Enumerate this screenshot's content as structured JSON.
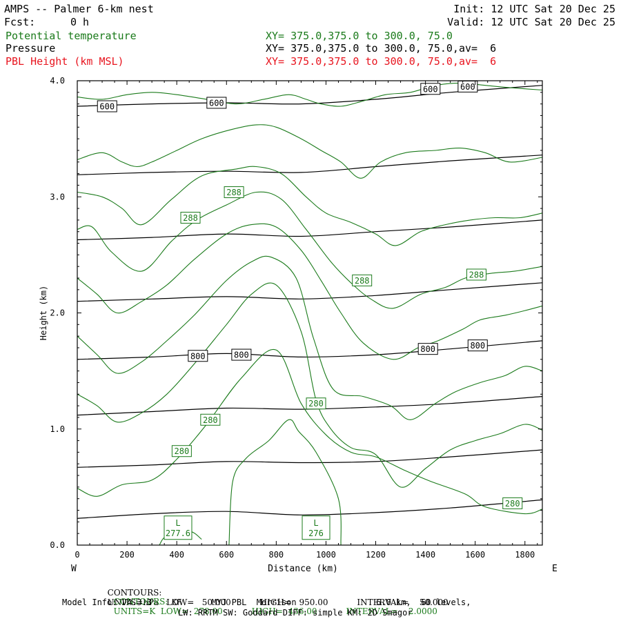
{
  "header": {
    "title": "AMPS -- Palmer 6-km nest",
    "fcst_label": "Fcst:",
    "fcst_value": "0 h",
    "init": "Init: 12 UTC Sat 20 Dec 25",
    "valid": "Valid: 12 UTC Sat 20 Dec 25",
    "fields": [
      {
        "name": "Potential temperature",
        "xy": "XY= 375.0,375.0 to 300.0, 75.0",
        "color": "#1a7a1a"
      },
      {
        "name": "Pressure",
        "xy": "XY= 375.0,375.0 to 300.0, 75.0,av=  6",
        "color": "#000000"
      },
      {
        "name": "PBL Height (km MSL)",
        "xy": "XY= 375.0,375.0 to 300.0, 75.0,av=  6",
        "color": "#e8141e"
      }
    ]
  },
  "chart_data": {
    "type": "line",
    "xlabel": "Distance (km)",
    "ylabel": "Height (km)",
    "xlim": [
      0,
      1870
    ],
    "ylim": [
      0,
      4
    ],
    "xticks": [
      0,
      200,
      400,
      600,
      800,
      1000,
      1200,
      1400,
      1600,
      1800
    ],
    "yticks": [
      0.0,
      1.0,
      2.0,
      3.0,
      4.0
    ],
    "ytick_labels": [
      "0.0",
      "1.0",
      "2.0",
      "3.0",
      "4.0"
    ],
    "left_end_label": "W",
    "right_end_label": "E",
    "pressure_contours": {
      "units": "hPa",
      "color": "#000000",
      "lines": [
        {
          "x": [
            0,
            300,
            600,
            900,
            1200,
            1500,
            1870
          ],
          "y": [
            0.23,
            0.27,
            0.29,
            0.26,
            0.28,
            0.32,
            0.39
          ]
        },
        {
          "x": [
            0,
            300,
            600,
            900,
            1200,
            1500,
            1870
          ],
          "y": [
            0.67,
            0.69,
            0.72,
            0.71,
            0.72,
            0.76,
            0.82
          ]
        },
        {
          "x": [
            0,
            300,
            600,
            900,
            1200,
            1500,
            1870
          ],
          "y": [
            1.12,
            1.15,
            1.18,
            1.17,
            1.19,
            1.22,
            1.28
          ]
        },
        {
          "x": [
            0,
            300,
            600,
            900,
            1200,
            1500,
            1870
          ],
          "y": [
            1.6,
            1.62,
            1.65,
            1.62,
            1.64,
            1.69,
            1.76
          ]
        },
        {
          "x": [
            0,
            300,
            600,
            900,
            1200,
            1500,
            1870
          ],
          "y": [
            2.1,
            2.12,
            2.14,
            2.12,
            2.15,
            2.2,
            2.26
          ]
        },
        {
          "x": [
            0,
            300,
            600,
            900,
            1200,
            1500,
            1870
          ],
          "y": [
            2.63,
            2.65,
            2.68,
            2.66,
            2.7,
            2.74,
            2.8
          ]
        },
        {
          "x": [
            0,
            300,
            600,
            900,
            1200,
            1500,
            1870
          ],
          "y": [
            3.19,
            3.21,
            3.22,
            3.21,
            3.26,
            3.31,
            3.36
          ]
        },
        {
          "x": [
            0,
            300,
            600,
            900,
            1200,
            1500,
            1870
          ],
          "y": [
            3.78,
            3.8,
            3.81,
            3.8,
            3.84,
            3.9,
            3.96
          ]
        }
      ],
      "labels": [
        {
          "text": "600",
          "x": 120,
          "y": 3.78
        },
        {
          "text": "600",
          "x": 560,
          "y": 3.81
        },
        {
          "text": "600",
          "x": 1420,
          "y": 3.93
        },
        {
          "text": "600",
          "x": 1570,
          "y": 3.95
        },
        {
          "text": "800",
          "x": 485,
          "y": 1.63
        },
        {
          "text": "800",
          "x": 660,
          "y": 1.64
        },
        {
          "text": "800",
          "x": 1410,
          "y": 1.69
        },
        {
          "text": "800",
          "x": 1610,
          "y": 1.72
        }
      ]
    },
    "theta_contours": {
      "units": "K",
      "color": "#1a7a1a",
      "lines": [
        {
          "x": [
            330,
            360,
            450,
            500
          ],
          "y": [
            0.0,
            0.08,
            0.12,
            0.05
          ]
        },
        {
          "x": [
            610,
            625,
            680,
            770,
            850,
            890,
            960,
            1050,
            1060
          ],
          "y": [
            0.0,
            0.55,
            0.75,
            0.9,
            1.08,
            0.98,
            0.8,
            0.4,
            0.0
          ]
        },
        {
          "x": [
            0,
            80,
            180,
            300,
            400,
            520,
            660,
            800,
            900,
            1000,
            1100,
            1200,
            1320,
            1420,
            1560,
            1640,
            1800,
            1870
          ],
          "y": [
            0.49,
            0.42,
            0.52,
            0.56,
            0.74,
            1.04,
            1.44,
            1.68,
            1.22,
            0.95,
            0.8,
            0.76,
            0.64,
            0.55,
            0.44,
            0.33,
            0.27,
            0.31
          ]
        },
        {
          "x": [
            0,
            80,
            160,
            260,
            360,
            470,
            600,
            700,
            800,
            900,
            960,
            1020,
            1100,
            1200,
            1300,
            1400,
            1500,
            1600,
            1700,
            1800,
            1870
          ],
          "y": [
            1.3,
            1.2,
            1.06,
            1.14,
            1.3,
            1.56,
            1.9,
            2.16,
            2.24,
            1.84,
            1.25,
            1.0,
            0.84,
            0.78,
            0.5,
            0.66,
            0.82,
            0.9,
            0.96,
            1.04,
            0.99
          ]
        },
        {
          "x": [
            0,
            80,
            160,
            260,
            360,
            470,
            600,
            700,
            780,
            880,
            950,
            1030,
            1150,
            1260,
            1340,
            1440,
            1520,
            1620,
            1720,
            1800,
            1870
          ],
          "y": [
            1.8,
            1.64,
            1.48,
            1.58,
            1.76,
            1.98,
            2.28,
            2.44,
            2.48,
            2.3,
            1.78,
            1.34,
            1.28,
            1.2,
            1.08,
            1.22,
            1.32,
            1.4,
            1.46,
            1.54,
            1.5
          ]
        },
        {
          "x": [
            0,
            80,
            160,
            260,
            360,
            470,
            600,
            700,
            800,
            900,
            980,
            1060,
            1150,
            1270,
            1370,
            1450,
            1550,
            1620,
            1720,
            1800,
            1870
          ],
          "y": [
            2.3,
            2.16,
            2.0,
            2.1,
            2.24,
            2.46,
            2.68,
            2.76,
            2.74,
            2.54,
            2.28,
            2.0,
            1.74,
            1.6,
            1.7,
            1.76,
            1.86,
            1.94,
            1.98,
            2.02,
            2.06
          ]
        },
        {
          "x": [
            0,
            60,
            140,
            260,
            380,
            480,
            600,
            720,
            820,
            920,
            1020,
            1100,
            1180,
            1270,
            1380,
            1480,
            1560,
            1660,
            1760,
            1870
          ],
          "y": [
            2.72,
            2.74,
            2.52,
            2.36,
            2.62,
            2.8,
            2.93,
            3.04,
            2.98,
            2.72,
            2.44,
            2.26,
            2.12,
            2.04,
            2.16,
            2.22,
            2.3,
            2.34,
            2.36,
            2.4
          ]
        },
        {
          "x": [
            0,
            100,
            180,
            260,
            380,
            500,
            640,
            720,
            820,
            920,
            1000,
            1100,
            1200,
            1280,
            1380,
            1480,
            1580,
            1680,
            1780,
            1870
          ],
          "y": [
            3.04,
            3.0,
            2.9,
            2.76,
            2.98,
            3.18,
            3.24,
            3.26,
            3.2,
            3.0,
            2.86,
            2.78,
            2.68,
            2.58,
            2.7,
            2.76,
            2.8,
            2.82,
            2.82,
            2.86
          ]
        },
        {
          "x": [
            0,
            100,
            180,
            240,
            300,
            400,
            500,
            620,
            720,
            800,
            900,
            980,
            1060,
            1140,
            1220,
            1320,
            1440,
            1540,
            1640,
            1740,
            1870
          ],
          "y": [
            3.32,
            3.38,
            3.3,
            3.26,
            3.3,
            3.4,
            3.5,
            3.58,
            3.62,
            3.6,
            3.5,
            3.4,
            3.3,
            3.16,
            3.3,
            3.38,
            3.4,
            3.42,
            3.38,
            3.3,
            3.34
          ]
        },
        {
          "x": [
            0,
            100,
            200,
            300,
            400,
            520,
            640,
            750,
            850,
            920,
            980,
            1060,
            1140,
            1240,
            1340,
            1440,
            1540,
            1640,
            1740,
            1870
          ],
          "y": [
            3.86,
            3.84,
            3.88,
            3.9,
            3.88,
            3.84,
            3.8,
            3.84,
            3.88,
            3.84,
            3.8,
            3.78,
            3.82,
            3.88,
            3.9,
            3.96,
            3.98,
            3.96,
            3.94,
            3.92
          ]
        }
      ],
      "labels": [
        {
          "text": "288",
          "x": 630,
          "y": 3.04
        },
        {
          "text": "288",
          "x": 455,
          "y": 2.82
        },
        {
          "text": "288",
          "x": 1145,
          "y": 2.28
        },
        {
          "text": "288",
          "x": 1605,
          "y": 2.33
        },
        {
          "text": "280",
          "x": 960,
          "y": 1.22
        },
        {
          "text": "280",
          "x": 535,
          "y": 1.08
        },
        {
          "text": "280",
          "x": 420,
          "y": 0.81
        },
        {
          "text": "280",
          "x": 1750,
          "y": 0.36
        }
      ],
      "lows": [
        {
          "letter": "L",
          "value": "277.6",
          "x": 405,
          "y": 0.15
        },
        {
          "letter": "L",
          "value": "276",
          "x": 960,
          "y": 0.15
        }
      ]
    }
  },
  "footer": {
    "line1": {
      "label": "CONTOURS:",
      "text": "UNITS=hPa   LOW=   50.000           HIGH=   950.00           INTERVAL=    50.000",
      "color": "#000000"
    },
    "line2": {
      "label": "CONTOURS:",
      "text": "UNITS=K  LOW=  278.00           HIGH=  436.00           INTERVAL=    2.0000",
      "color": "#1a7a1a"
    },
    "line3": "Model Info: V4.3.3    KF      MYJ PBL  Morrison                6.0 km,  60 levels,",
    "line4": "LW: RRTM SW: Goddard DIFF: simple KM: 2D Smagor"
  }
}
